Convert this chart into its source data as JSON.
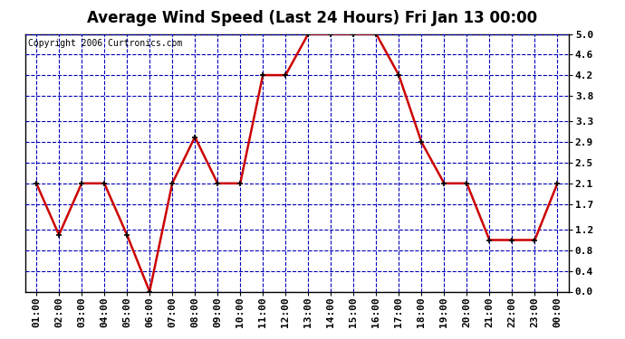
{
  "title": "Average Wind Speed (Last 24 Hours) Fri Jan 13 00:00",
  "copyright": "Copyright 2006 Curtronics.com",
  "hours": [
    "01:00",
    "02:00",
    "03:00",
    "04:00",
    "05:00",
    "06:00",
    "07:00",
    "08:00",
    "09:00",
    "10:00",
    "11:00",
    "12:00",
    "13:00",
    "14:00",
    "15:00",
    "16:00",
    "17:00",
    "18:00",
    "19:00",
    "20:00",
    "21:00",
    "22:00",
    "23:00",
    "00:00"
  ],
  "values": [
    2.1,
    1.1,
    2.1,
    2.1,
    1.1,
    0.0,
    2.1,
    3.0,
    2.1,
    2.1,
    4.2,
    4.2,
    5.0,
    5.0,
    5.0,
    5.0,
    4.2,
    2.9,
    2.1,
    2.1,
    1.0,
    1.0,
    1.0,
    2.1
  ],
  "ylim": [
    0.0,
    5.0
  ],
  "yticks": [
    0.0,
    0.4,
    0.8,
    1.2,
    1.7,
    2.1,
    2.5,
    2.9,
    3.3,
    3.8,
    4.2,
    4.6,
    5.0
  ],
  "line_color": "#cc0000",
  "marker_color": "#000000",
  "grid_color": "#0000bb",
  "bg_color": "#ffffff",
  "plot_bg_color": "#ffffff",
  "title_fontsize": 12,
  "copyright_fontsize": 7,
  "tick_fontsize": 8,
  "line_width": 1.8,
  "marker_size": 4
}
